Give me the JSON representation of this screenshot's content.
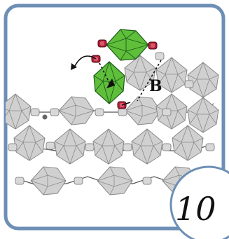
{
  "colors": {
    "frame": "#6d8fb5",
    "grey_bead": "#d0d0d0",
    "grey_bead_edge": "#8a8a8a",
    "green_bead": "#5fbf3a",
    "green_bead_edge": "#1d5e1a",
    "seed_red": "#b3213a",
    "seed_grey": "#d8d8d8",
    "thread": "#555555"
  },
  "diagram": {
    "callout_label": "B",
    "step_number": "10"
  }
}
